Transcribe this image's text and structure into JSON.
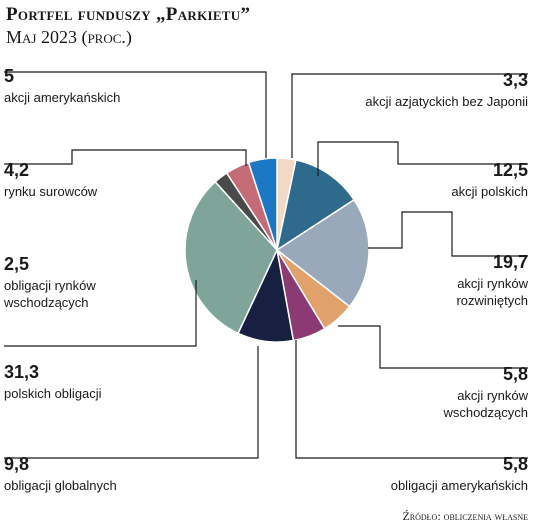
{
  "header": {
    "title": "Portfel funduszy „Parkietu”",
    "subtitle": "Maj 2023 (proc.)"
  },
  "source": "Źródło: obliczenia własne",
  "chart_data": {
    "type": "pie",
    "title": "Portfel funduszy „Parkietu”",
    "subtitle": "Maj 2023 (proc.)",
    "slices": [
      {
        "value": "3,3",
        "num": 3.3,
        "label": [
          "akcji azjatyckich bez Japonii"
        ],
        "color": "#f2d9c6"
      },
      {
        "value": "12,5",
        "num": 12.5,
        "label": [
          "akcji polskich"
        ],
        "color": "#2e6a8c"
      },
      {
        "value": "19,7",
        "num": 19.7,
        "label": [
          "akcji rynków",
          "rozwiniętych"
        ],
        "color": "#99a8bb"
      },
      {
        "value": "5,8",
        "num": 5.8,
        "label": [
          "akcji rynków",
          "wschodzących"
        ],
        "color": "#e0a26a"
      },
      {
        "value": "5,8",
        "num": 5.8,
        "label": [
          "obligacji amerykańskich"
        ],
        "color": "#8c3a74"
      },
      {
        "value": "9,8",
        "num": 9.8,
        "label": [
          "obligacji globalnych"
        ],
        "color": "#172040"
      },
      {
        "value": "31,3",
        "num": 31.3,
        "label": [
          "polskich obligacji"
        ],
        "color": "#7fa59a"
      },
      {
        "value": "2,5",
        "num": 2.5,
        "label": [
          "obligacji rynków",
          "wschodzących"
        ],
        "color": "#4a4a4a"
      },
      {
        "value": "4,2",
        "num": 4.2,
        "label": [
          "rynku surowców"
        ],
        "color": "#c56b78"
      },
      {
        "value": "5",
        "num": 5,
        "label": [
          "akcji amerykańskich"
        ],
        "color": "#1c78c2"
      }
    ]
  }
}
